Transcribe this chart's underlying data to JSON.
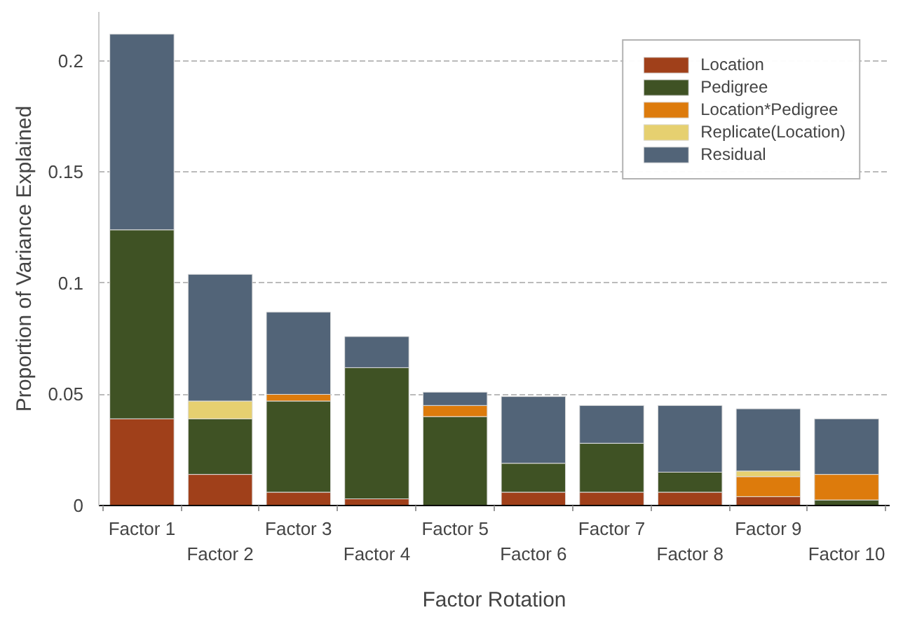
{
  "chart_data": {
    "type": "bar",
    "stacked": true,
    "xlabel": "Factor Rotation",
    "ylabel": "Proportion of Variance Explained",
    "categories": [
      "Factor 1",
      "Factor 2",
      "Factor 3",
      "Factor 4",
      "Factor 5",
      "Factor 6",
      "Factor 7",
      "Factor 8",
      "Factor 9",
      "Factor 10"
    ],
    "series": [
      {
        "name": "Location",
        "color": "#a0401a",
        "values": [
          0.039,
          0.014,
          0.006,
          0.003,
          null,
          0.006,
          0.006,
          0.006,
          0.004,
          null
        ]
      },
      {
        "name": "Pedigree",
        "color": "#3f5224",
        "values": [
          0.085,
          0.025,
          0.041,
          0.059,
          0.04,
          0.013,
          0.022,
          0.009,
          null,
          0.0025
        ]
      },
      {
        "name": "Location*Pedigree",
        "color": "#dd7b0c",
        "values": [
          null,
          null,
          0.003,
          null,
          0.005,
          null,
          null,
          null,
          0.009,
          0.0115
        ]
      },
      {
        "name": "Replicate(Location)",
        "color": "#e6d070",
        "values": [
          null,
          0.008,
          null,
          null,
          null,
          null,
          null,
          null,
          0.0025,
          null
        ]
      },
      {
        "name": "Residual",
        "color": "#526478",
        "values": [
          0.088,
          0.057,
          0.037,
          0.014,
          0.006,
          0.03,
          0.017,
          0.03,
          0.028,
          0.025
        ]
      }
    ],
    "ylim": [
      0,
      0.222
    ],
    "yticks": [
      0,
      0.05,
      0.1,
      0.15,
      0.2
    ],
    "grid": "y",
    "legend": "top right"
  }
}
